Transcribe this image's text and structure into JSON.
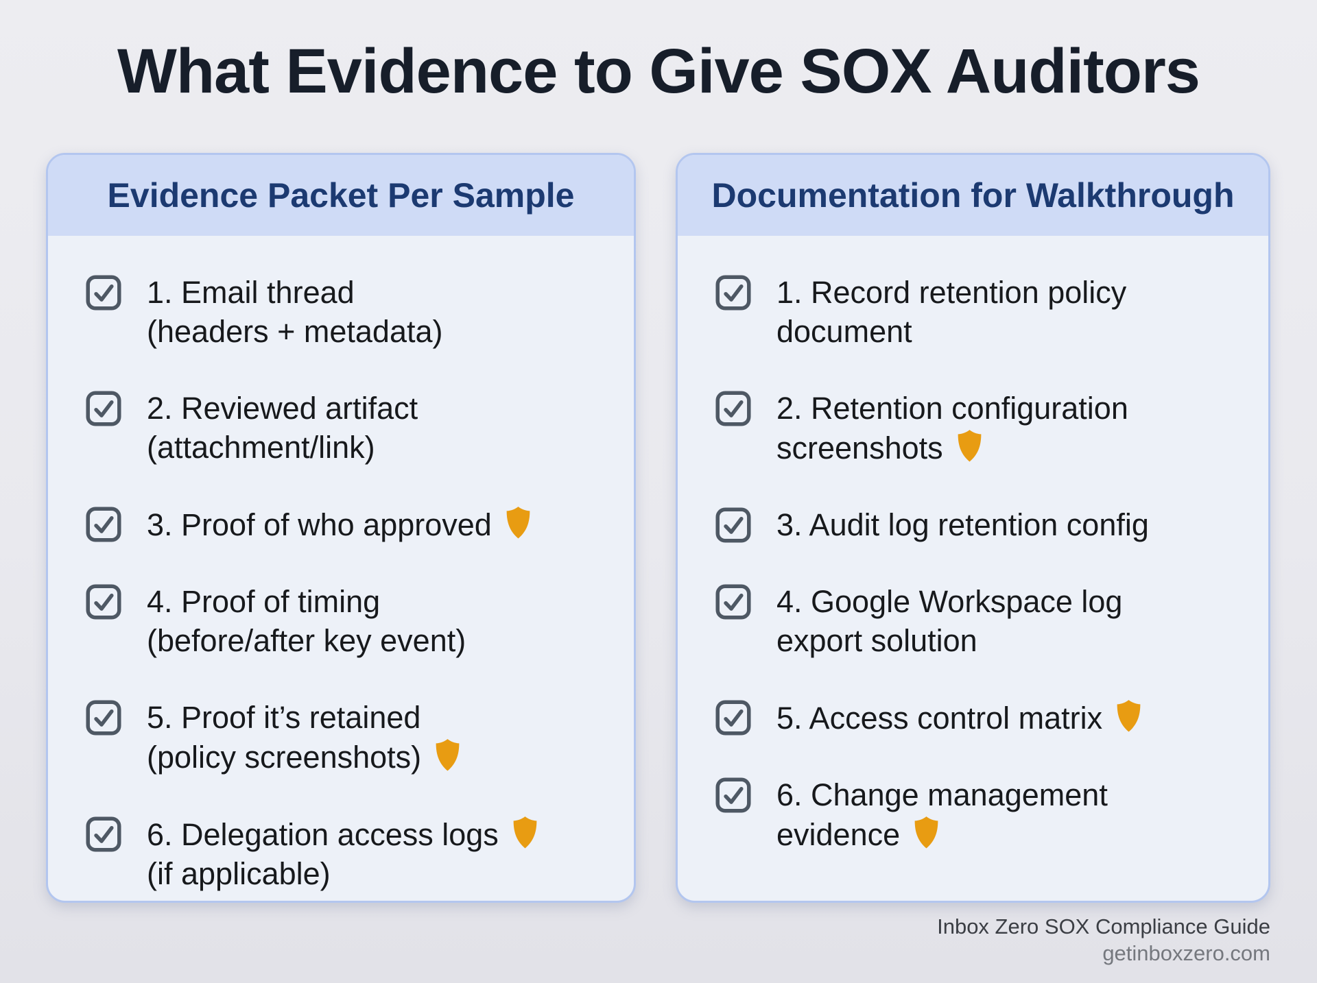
{
  "page": {
    "title": "What Evidence to Give SOX Auditors"
  },
  "colors": {
    "page_background": "#e9e9ed",
    "card_background": "#edf1f8",
    "card_header_background": "#cfdbf6",
    "card_border": "#b3c6ef",
    "title_text": "#171e2a",
    "card_title_text": "#1c3a71",
    "item_text": "#17191c",
    "checkbox_stroke": "#4e5864",
    "shield_fill": "#e89c12",
    "footer_primary_text": "#3b3e44",
    "footer_secondary_text": "#75787e"
  },
  "icons": {
    "checkbox_checked": "☑",
    "shield": "🛡"
  },
  "cards": [
    {
      "title": "Evidence Packet Per Sample",
      "items": [
        {
          "lines": [
            "1. Email thread",
            "(headers + metadata)"
          ],
          "shield_line": null
        },
        {
          "lines": [
            "2. Reviewed artifact",
            "(attachment/link)"
          ],
          "shield_line": null
        },
        {
          "lines": [
            "3. Proof of who approved"
          ],
          "shield_line": 0
        },
        {
          "lines": [
            "4. Proof of timing",
            "(before/after key event)"
          ],
          "shield_line": null
        },
        {
          "lines": [
            "5. Proof it’s retained",
            "(policy screenshots)"
          ],
          "shield_line": 1
        },
        {
          "lines": [
            "6. Delegation access logs",
            "(if applicable)"
          ],
          "shield_line": 0
        }
      ]
    },
    {
      "title": "Documentation for Walkthrough",
      "items": [
        {
          "lines": [
            "1. Record retention policy",
            "document"
          ],
          "shield_line": null
        },
        {
          "lines": [
            "2. Retention configuration",
            "screenshots"
          ],
          "shield_line": 1
        },
        {
          "lines": [
            "3. Audit log retention config"
          ],
          "shield_line": null
        },
        {
          "lines": [
            "4. Google Workspace log",
            "export solution"
          ],
          "shield_line": null
        },
        {
          "lines": [
            "5. Access control matrix"
          ],
          "shield_line": 0
        },
        {
          "lines": [
            "6. Change management",
            "evidence"
          ],
          "shield_line": 1
        }
      ]
    }
  ],
  "footer": {
    "line1": "Inbox Zero SOX Compliance Guide",
    "line2": "getinboxzero.com"
  }
}
